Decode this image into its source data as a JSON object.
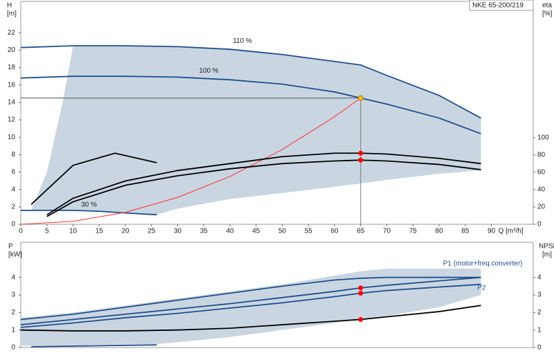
{
  "chart_data": [
    {
      "type": "line",
      "title": "NKE 65-200/219",
      "ylabel": [
        "H",
        "[m]"
      ],
      "y2label": [
        "eta",
        "[%]"
      ],
      "xlabel": "Q [m³/h]",
      "xlim": [
        0,
        98
      ],
      "ylim": [
        0,
        25.6
      ],
      "y2lim": [
        0,
        257
      ],
      "xticks": [
        0,
        5,
        10,
        15,
        20,
        25,
        30,
        35,
        40,
        45,
        50,
        55,
        60,
        65,
        70,
        75,
        80,
        85,
        90
      ],
      "yticks": [
        0,
        2,
        4,
        6,
        8,
        10,
        12,
        14,
        16,
        18,
        20,
        22
      ],
      "y2ticks": [
        0,
        20,
        40,
        60,
        80,
        100
      ],
      "area": {
        "color": "#c9d6e2",
        "x": [
          2,
          5,
          8,
          10,
          20,
          30,
          40,
          50,
          60,
          65,
          70,
          80,
          88,
          88,
          80,
          70,
          60,
          50,
          40,
          30,
          26,
          20,
          10,
          2
        ],
        "values": [
          1.6,
          6,
          14,
          20.5,
          20.5,
          20.4,
          20.1,
          19.5,
          18.7,
          18.3,
          17.1,
          14.8,
          12.2,
          6.2,
          5.8,
          5.1,
          4.3,
          3.6,
          2.9,
          1.8,
          1.1,
          1.3,
          1.6,
          1.6
        ]
      },
      "series": [
        {
          "name": "110 %",
          "color": "#1f4e8c",
          "x": [
            0,
            10,
            20,
            30,
            40,
            50,
            60,
            65,
            70,
            80,
            88
          ],
          "values": [
            20.3,
            20.5,
            20.5,
            20.4,
            20.1,
            19.5,
            18.7,
            18.3,
            17.1,
            14.8,
            12.2
          ]
        },
        {
          "name": "100 %",
          "color": "#1f4e8c",
          "x": [
            0,
            10,
            20,
            30,
            40,
            50,
            60,
            65,
            70,
            80,
            88
          ],
          "values": [
            16.8,
            17.0,
            17.0,
            16.9,
            16.6,
            16.1,
            15.2,
            14.5,
            13.8,
            12.2,
            10.4
          ]
        },
        {
          "name": "30 %",
          "color": "#1f4e8c",
          "x": [
            0,
            5,
            10,
            15,
            20,
            26
          ],
          "values": [
            1.6,
            1.6,
            1.6,
            1.5,
            1.3,
            1.1
          ]
        },
        {
          "color": "#ff3030",
          "x": [
            0,
            10,
            20,
            30,
            40,
            50,
            60,
            65
          ],
          "values": [
            0,
            0.34,
            1.37,
            3.09,
            5.49,
            8.58,
            12.36,
            14.5
          ]
        },
        {
          "color": "#000000",
          "axis": "y2",
          "x": [
            2,
            10,
            18,
            26
          ],
          "values": [
            23,
            68,
            82,
            71
          ]
        },
        {
          "color": "#000000",
          "axis": "y2",
          "x": [
            5,
            10,
            20,
            30,
            40,
            50,
            60,
            65,
            70,
            80,
            88
          ],
          "values": [
            11,
            30,
            50,
            62,
            70,
            78,
            82,
            82,
            81,
            76,
            70
          ]
        },
        {
          "color": "#000000",
          "axis": "y2",
          "x": [
            5,
            10,
            20,
            30,
            40,
            50,
            60,
            65,
            70,
            80,
            88
          ],
          "values": [
            9,
            26,
            45,
            56,
            64,
            70,
            73,
            74,
            73,
            69,
            63
          ]
        }
      ],
      "points": [
        {
          "x": 65,
          "y": 14.5,
          "color": "#f5c518"
        },
        {
          "x": 65,
          "y": 82,
          "axis": "y2",
          "color": "#ff0000"
        },
        {
          "x": 65,
          "y": 74,
          "axis": "y2",
          "color": "#ff0000"
        }
      ]
    },
    {
      "type": "line",
      "ylabel": [
        "P",
        "[kW]"
      ],
      "y2label": [
        "NPSH",
        "[m]"
      ],
      "xlim": [
        0,
        98
      ],
      "ylim": [
        0,
        6
      ],
      "y2lim": [
        0,
        6
      ],
      "yticks": [
        0,
        1,
        2,
        3,
        4
      ],
      "y2ticks": [
        0,
        1,
        2,
        3,
        4
      ],
      "area": {
        "color": "#c9d6e2",
        "x": [
          0,
          10,
          20,
          30,
          40,
          50,
          60,
          65,
          70,
          88,
          88,
          80,
          70,
          60,
          50,
          40,
          30,
          26,
          0
        ],
        "values": [
          1.7,
          2.0,
          2.4,
          2.8,
          3.2,
          3.6,
          4.1,
          4.35,
          4.5,
          4.5,
          3.0,
          2.3,
          1.8,
          1.4,
          1.0,
          0.6,
          0.3,
          0.2,
          0.1
        ]
      },
      "series": [
        {
          "color": "#1f4e8c",
          "x": [
            0,
            10,
            20,
            30,
            40,
            50,
            60,
            65,
            70,
            80,
            88
          ],
          "values": [
            1.6,
            1.9,
            2.3,
            2.7,
            3.1,
            3.5,
            3.85,
            3.95,
            4.0,
            4.0,
            4.0
          ]
        },
        {
          "name": "P1 (motor+freq.converter)",
          "color": "#1f4e8c",
          "x": [
            0,
            10,
            20,
            30,
            40,
            50,
            60,
            65,
            70,
            80,
            88
          ],
          "values": [
            1.3,
            1.6,
            1.9,
            2.2,
            2.5,
            2.85,
            3.2,
            3.4,
            3.55,
            3.8,
            4.0
          ]
        },
        {
          "name": "P2",
          "color": "#1f4e8c",
          "x": [
            0,
            10,
            20,
            30,
            40,
            50,
            60,
            65,
            70,
            80,
            88
          ],
          "values": [
            1.15,
            1.4,
            1.7,
            1.95,
            2.25,
            2.55,
            2.9,
            3.1,
            3.25,
            3.45,
            3.6
          ]
        },
        {
          "color": "#1f4e8c",
          "x": [
            2,
            26
          ],
          "values": [
            0.05,
            0.15
          ]
        },
        {
          "color": "#000000",
          "axis": "y2",
          "x": [
            0,
            10,
            20,
            30,
            40,
            50,
            60,
            65,
            70,
            80,
            88
          ],
          "values": [
            1.0,
            0.95,
            0.95,
            1.0,
            1.1,
            1.3,
            1.5,
            1.6,
            1.75,
            2.05,
            2.4
          ]
        }
      ],
      "points": [
        {
          "x": 65,
          "y": 3.4,
          "color": "#ff0000"
        },
        {
          "x": 65,
          "y": 3.1,
          "color": "#ff0000"
        },
        {
          "x": 65,
          "y": 1.6,
          "axis": "y2",
          "color": "#ff0000"
        }
      ]
    }
  ]
}
